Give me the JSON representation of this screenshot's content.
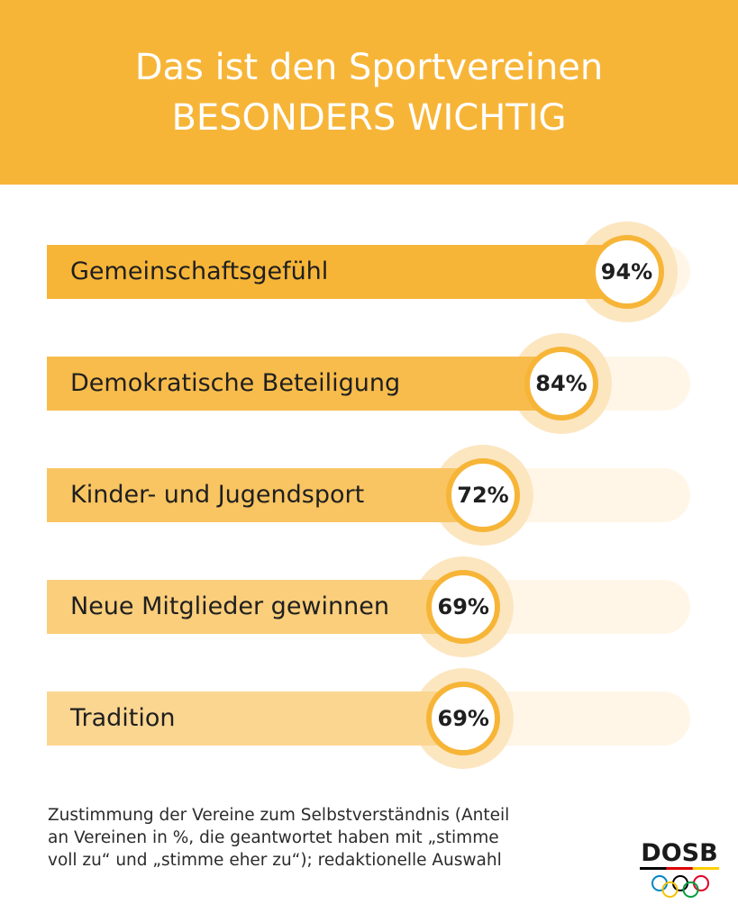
{
  "header": {
    "title_line1": "Das ist den Sportvereinen",
    "title_line2": "BESONDERS WICHTIG"
  },
  "chart_data": {
    "type": "bar",
    "orientation": "horizontal",
    "categories": [
      "Gemeinschaftsgefühl",
      "Demokratische Beteiligung",
      "Kinder- und Jugendsport",
      "Neue Mitglieder gewinnen",
      "Tradition"
    ],
    "values": [
      94,
      84,
      72,
      69,
      69
    ],
    "value_labels": [
      "94%",
      "84%",
      "72%",
      "69%",
      "69%"
    ],
    "xlim": [
      0,
      100
    ],
    "bar_colors": [
      "#f7b538",
      "#f8bc4c",
      "#f9c562",
      "#face7b",
      "#fbd690"
    ]
  },
  "footnote": {
    "line1": "Zustimmung der Vereine zum Selbstverständnis (Anteil",
    "line2": "an Vereinen in %, die geantwortet haben mit „stimme",
    "line3": "voll zu“ und „stimme eher zu“); redaktionelle Auswahl"
  },
  "logo": {
    "text": "DOSB",
    "flag_colors": [
      "#000000",
      "#dd0000",
      "#ffce00"
    ],
    "ring_colors": [
      "#0085c7",
      "#000000",
      "#df0024",
      "#f4c300",
      "#009f3d"
    ]
  },
  "colors": {
    "accent": "#f7b538",
    "track": "#fff6e7",
    "halo": "#fce6c0"
  }
}
